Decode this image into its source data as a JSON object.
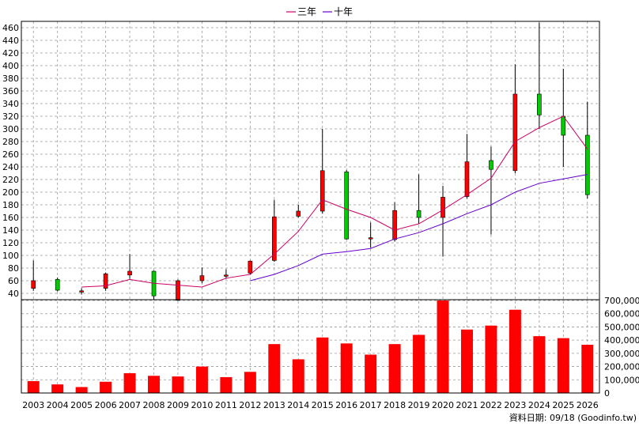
{
  "legend": {
    "items": [
      {
        "label": "三年",
        "color": "#cc0066"
      },
      {
        "label": "十年",
        "color": "#6600cc"
      }
    ]
  },
  "footer": {
    "source": "資料日期: 09/18  (Goodinfo.tw)"
  },
  "colors": {
    "up": "#ff0000",
    "down": "#00cc00",
    "wick": "#000000",
    "volume": "#ff0000",
    "grid": "#999999"
  },
  "chart_data": [
    {
      "type": "candlestick",
      "title": "",
      "xlabel": "",
      "ylabel": "",
      "categories": [
        "2003",
        "2004",
        "2005",
        "2006",
        "2007",
        "2008",
        "2009",
        "2010",
        "2011",
        "2012",
        "2013",
        "2014",
        "2015",
        "2016",
        "2017",
        "2018",
        "2019",
        "2020",
        "2021",
        "2022",
        "2023",
        "2024",
        "2025",
        "2026"
      ],
      "ylim": [
        30,
        470
      ],
      "yticks": [
        40,
        60,
        80,
        100,
        120,
        140,
        160,
        180,
        200,
        220,
        240,
        260,
        280,
        300,
        320,
        340,
        360,
        380,
        400,
        420,
        440,
        460
      ],
      "grid": true,
      "candles": [
        {
          "open": 48,
          "close": 60,
          "low": 44,
          "high": 92,
          "dir": "up"
        },
        {
          "open": 62,
          "close": 45,
          "low": 43,
          "high": 65,
          "dir": "down"
        },
        {
          "open": 42,
          "close": 44,
          "low": 38,
          "high": 48,
          "dir": "up"
        },
        {
          "open": 48,
          "close": 71,
          "low": 44,
          "high": 73,
          "dir": "up"
        },
        {
          "open": 69,
          "close": 75,
          "low": 63,
          "high": 102,
          "dir": "up"
        },
        {
          "open": 75,
          "close": 36,
          "low": 30,
          "high": 76,
          "dir": "down"
        },
        {
          "open": 29,
          "close": 60,
          "low": 28,
          "high": 62,
          "dir": "up"
        },
        {
          "open": 60,
          "close": 68,
          "low": 56,
          "high": 81,
          "dir": "up"
        },
        {
          "open": 67,
          "close": 69,
          "low": 63,
          "high": 78,
          "dir": "up"
        },
        {
          "open": 72,
          "close": 91,
          "low": 70,
          "high": 92,
          "dir": "up"
        },
        {
          "open": 92,
          "close": 161,
          "low": 90,
          "high": 188,
          "dir": "up"
        },
        {
          "open": 162,
          "close": 170,
          "low": 160,
          "high": 180,
          "dir": "up"
        },
        {
          "open": 170,
          "close": 234,
          "low": 166,
          "high": 300,
          "dir": "up"
        },
        {
          "open": 232,
          "close": 126,
          "low": 125,
          "high": 235,
          "dir": "down"
        },
        {
          "open": 126,
          "close": 128,
          "low": 112,
          "high": 152,
          "dir": "up"
        },
        {
          "open": 125,
          "close": 171,
          "low": 122,
          "high": 184,
          "dir": "up"
        },
        {
          "open": 171,
          "close": 160,
          "low": 150,
          "high": 228,
          "dir": "down"
        },
        {
          "open": 160,
          "close": 192,
          "low": 98,
          "high": 210,
          "dir": "up"
        },
        {
          "open": 193,
          "close": 248,
          "low": 190,
          "high": 292,
          "dir": "up"
        },
        {
          "open": 250,
          "close": 236,
          "low": 133,
          "high": 272,
          "dir": "down"
        },
        {
          "open": 234,
          "close": 355,
          "low": 230,
          "high": 402,
          "dir": "up"
        },
        {
          "open": 355,
          "close": 322,
          "low": 300,
          "high": 468,
          "dir": "down"
        },
        {
          "open": 320,
          "close": 290,
          "low": 240,
          "high": 395,
          "dir": "down"
        },
        {
          "open": 290,
          "close": 196,
          "low": 190,
          "high": 343,
          "dir": "down"
        }
      ],
      "series": [
        {
          "name": "三年",
          "values": [
            null,
            null,
            50,
            52,
            62,
            56,
            53,
            50,
            64,
            70,
            102,
            138,
            188,
            173,
            160,
            140,
            150,
            172,
            196,
            222,
            280,
            302,
            320,
            268
          ]
        },
        {
          "name": "十年",
          "values": [
            null,
            null,
            null,
            null,
            null,
            null,
            null,
            null,
            null,
            60,
            70,
            84,
            102,
            106,
            111,
            126,
            136,
            150,
            166,
            180,
            200,
            214,
            221,
            228
          ]
        }
      ]
    },
    {
      "type": "bar",
      "title": "",
      "xlabel": "",
      "ylabel": "",
      "categories": [
        "2003",
        "2004",
        "2005",
        "2006",
        "2007",
        "2008",
        "2009",
        "2010",
        "2011",
        "2012",
        "2013",
        "2014",
        "2015",
        "2016",
        "2017",
        "2018",
        "2019",
        "2020",
        "2021",
        "2022",
        "2023",
        "2024",
        "2025",
        "2026"
      ],
      "values": [
        90000,
        65000,
        45000,
        85000,
        150000,
        130000,
        125000,
        200000,
        120000,
        160000,
        370000,
        255000,
        420000,
        375000,
        290000,
        370000,
        440000,
        700000,
        480000,
        510000,
        630000,
        430000,
        415000,
        365000
      ],
      "ylim": [
        0,
        700000
      ],
      "yticks": [
        0,
        100000,
        200000,
        300000,
        400000,
        500000,
        600000,
        700000
      ],
      "ytick_labels": [
        "0",
        "100,000",
        "200,000",
        "300,000",
        "400,000",
        "500,000",
        "600,000",
        "700,000"
      ],
      "grid": true
    }
  ]
}
